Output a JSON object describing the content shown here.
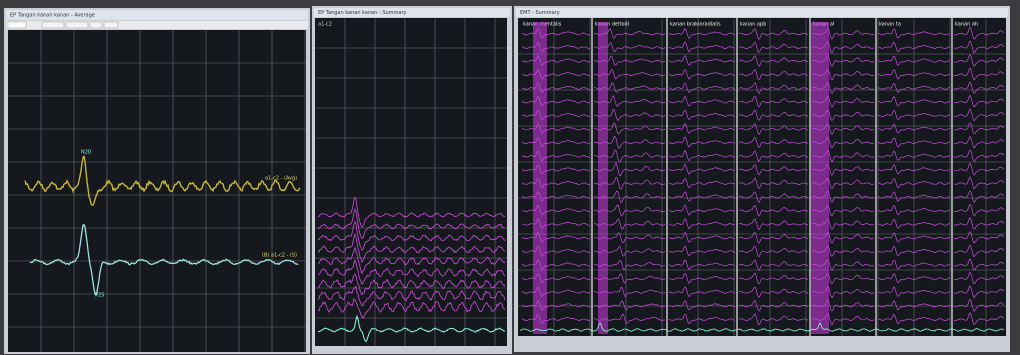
{
  "windows": [
    {
      "title": "EP Tangan kanan kanan - Average",
      "traces": [
        "a1-c2 - (Avg)",
        "(B) a1-c2 - (S)"
      ],
      "markers": [
        "N20",
        "P25"
      ]
    },
    {
      "title": "EP Tangan kanan kanan - Summary",
      "subtitle": "a1-c2"
    },
    {
      "title": "EMT - Summary",
      "columns": [
        "kanan mentalis",
        "kanan deltoid",
        "kanan brakioradialis",
        "kanan apb",
        "kanan al",
        "kanan ta",
        "kanan ah"
      ]
    }
  ]
}
